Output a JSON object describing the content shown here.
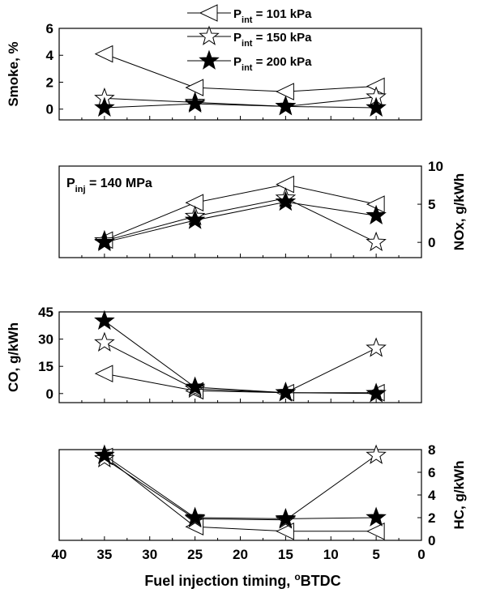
{
  "legend": {
    "position": "top-center",
    "entries": [
      {
        "prefix": "P",
        "sub": "int",
        "suffix": " = 101 kPa",
        "marker": "triangle-left-open"
      },
      {
        "prefix": "P",
        "sub": "int",
        "suffix": " = 150 kPa",
        "marker": "star-open"
      },
      {
        "prefix": "P",
        "sub": "int",
        "suffix": " = 200 kPa",
        "marker": "star-filled"
      }
    ]
  },
  "annotation": {
    "prefix": "P",
    "sub": "inj",
    "suffix": " = 140 MPa"
  },
  "xaxis": {
    "label_main": "Fuel injection timing, ",
    "label_sup": "o",
    "label_end": "BTDC",
    "ticks": [
      "40",
      "35",
      "30",
      "25",
      "20",
      "15",
      "10",
      "5",
      "0"
    ],
    "range": [
      40,
      0
    ]
  },
  "chart_data": [
    {
      "type": "line",
      "ylabel": "Smoke, %",
      "ylabel_side": "left",
      "yticks": [
        "0",
        "2",
        "4",
        "6"
      ],
      "ylim": [
        -0.8,
        6
      ],
      "x": [
        35,
        25,
        15,
        5
      ],
      "series": [
        {
          "name": "Pint = 101 kPa",
          "marker": "triangle-left-open",
          "values": [
            4.1,
            1.6,
            1.3,
            1.7
          ]
        },
        {
          "name": "Pint = 150 kPa",
          "marker": "star-open",
          "values": [
            0.8,
            0.5,
            0.2,
            0.9
          ]
        },
        {
          "name": "Pint = 200 kPa",
          "marker": "star-filled",
          "values": [
            0.1,
            0.4,
            0.2,
            0.1
          ]
        }
      ]
    },
    {
      "type": "line",
      "ylabel": "NOx, g/kWh",
      "ylabel_side": "right",
      "yticks": [
        "0",
        "5",
        "10"
      ],
      "ylim": [
        -2,
        10
      ],
      "x": [
        35,
        25,
        15,
        5
      ],
      "series": [
        {
          "name": "Pint = 101 kPa",
          "marker": "triangle-left-open",
          "values": [
            0.3,
            5.2,
            7.6,
            5.0
          ]
        },
        {
          "name": "Pint = 150 kPa",
          "marker": "star-open",
          "values": [
            0.2,
            3.4,
            5.8,
            0.0
          ]
        },
        {
          "name": "Pint = 200 kPa",
          "marker": "star-filled",
          "values": [
            0.0,
            2.9,
            5.3,
            3.5
          ]
        }
      ]
    },
    {
      "type": "line",
      "ylabel": "CO, g/kWh",
      "ylabel_side": "left",
      "yticks": [
        "0",
        "15",
        "30",
        "45"
      ],
      "ylim": [
        -5,
        45
      ],
      "x": [
        35,
        25,
        15,
        5
      ],
      "series": [
        {
          "name": "Pint = 101 kPa",
          "marker": "triangle-left-open",
          "values": [
            11,
            1.5,
            0.5,
            0.5
          ]
        },
        {
          "name": "Pint = 150 kPa",
          "marker": "star-open",
          "values": [
            28,
            2.5,
            0.5,
            25
          ]
        },
        {
          "name": "Pint = 200 kPa",
          "marker": "star-filled",
          "values": [
            40,
            3.5,
            0.5,
            0
          ]
        }
      ]
    },
    {
      "type": "line",
      "ylabel": "HC, g/kWh",
      "ylabel_side": "right",
      "yticks": [
        "0",
        "2",
        "4",
        "6",
        "8"
      ],
      "ylim": [
        0,
        8
      ],
      "x": [
        35,
        25,
        15,
        5
      ],
      "series": [
        {
          "name": "Pint = 101 kPa",
          "marker": "triangle-left-open",
          "values": [
            7.4,
            1.2,
            0.8,
            0.8
          ]
        },
        {
          "name": "Pint = 150 kPa",
          "marker": "star-open",
          "values": [
            7.2,
            1.9,
            1.8,
            7.5
          ]
        },
        {
          "name": "Pint = 200 kPa",
          "marker": "star-filled",
          "values": [
            7.5,
            2.0,
            1.9,
            2.0
          ]
        }
      ]
    }
  ]
}
